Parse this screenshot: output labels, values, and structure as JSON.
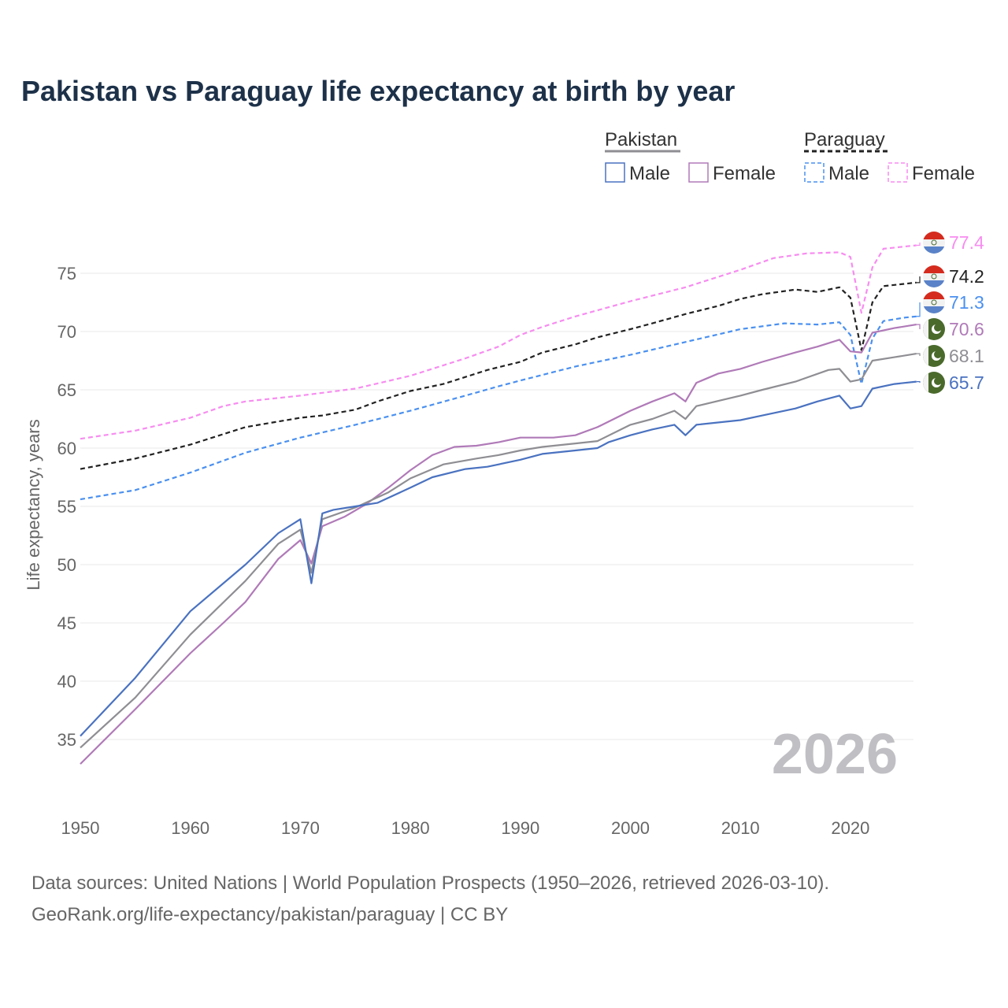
{
  "title": "Pakistan vs Paraguay life expectancy at birth by year",
  "footer": {
    "line1": "Data sources: United Nations | World Population Prospects (1950–2026, retrieved 2026-03-10).",
    "line2": "GeoRank.org/life-expectancy/pakistan/paraguay | CC BY"
  },
  "chart_data": {
    "type": "line",
    "title": "Pakistan vs Paraguay life expectancy at birth by year",
    "xlabel": "",
    "ylabel": "Life expectancy, years",
    "xlim": [
      1950,
      2026
    ],
    "ylim": [
      32,
      80
    ],
    "xticks": [
      1950,
      1960,
      1970,
      1980,
      1990,
      2000,
      2010,
      2020
    ],
    "yticks": [
      35,
      40,
      45,
      50,
      55,
      60,
      65,
      70,
      75
    ],
    "grid": true,
    "year_watermark": "2026",
    "legend": {
      "position": "top-right",
      "groups": [
        {
          "name": "Pakistan",
          "items": [
            "Male",
            "Female"
          ]
        },
        {
          "name": "Paraguay",
          "items": [
            "Male",
            "Female"
          ]
        }
      ]
    },
    "series": [
      {
        "name": "Paraguay",
        "sex": "Female",
        "color": "#f78cf0",
        "dash": true,
        "flag": "paraguay",
        "end_label": "77.4",
        "points": [
          [
            1950,
            60.8
          ],
          [
            1955,
            61.5
          ],
          [
            1960,
            62.6
          ],
          [
            1963,
            63.6
          ],
          [
            1965,
            64.0
          ],
          [
            1970,
            64.5
          ],
          [
            1975,
            65.1
          ],
          [
            1980,
            66.2
          ],
          [
            1985,
            67.7
          ],
          [
            1988,
            68.7
          ],
          [
            1990,
            69.7
          ],
          [
            1992,
            70.4
          ],
          [
            1995,
            71.3
          ],
          [
            2000,
            72.6
          ],
          [
            2005,
            73.8
          ],
          [
            2010,
            75.3
          ],
          [
            2013,
            76.3
          ],
          [
            2016,
            76.7
          ],
          [
            2019,
            76.8
          ],
          [
            2020,
            76.4
          ],
          [
            2021,
            71.6
          ],
          [
            2022,
            75.5
          ],
          [
            2023,
            77.1
          ],
          [
            2026,
            77.4
          ]
        ]
      },
      {
        "name": "Paraguay",
        "sex": "Total",
        "color": "#222222",
        "dash": true,
        "flag": "paraguay",
        "end_label": "74.2",
        "points": [
          [
            1950,
            58.2
          ],
          [
            1955,
            59.1
          ],
          [
            1960,
            60.3
          ],
          [
            1965,
            61.8
          ],
          [
            1970,
            62.6
          ],
          [
            1972,
            62.8
          ],
          [
            1975,
            63.3
          ],
          [
            1977,
            64.0
          ],
          [
            1980,
            64.9
          ],
          [
            1983,
            65.5
          ],
          [
            1985,
            66.1
          ],
          [
            1987,
            66.7
          ],
          [
            1990,
            67.4
          ],
          [
            1992,
            68.2
          ],
          [
            1995,
            68.9
          ],
          [
            1997,
            69.5
          ],
          [
            2000,
            70.2
          ],
          [
            2002,
            70.7
          ],
          [
            2005,
            71.5
          ],
          [
            2008,
            72.2
          ],
          [
            2010,
            72.8
          ],
          [
            2012,
            73.2
          ],
          [
            2015,
            73.6
          ],
          [
            2017,
            73.4
          ],
          [
            2019,
            73.8
          ],
          [
            2020,
            72.9
          ],
          [
            2021,
            68.4
          ],
          [
            2022,
            72.5
          ],
          [
            2023,
            73.9
          ],
          [
            2025,
            74.1
          ],
          [
            2026,
            74.2
          ]
        ]
      },
      {
        "name": "Paraguay",
        "sex": "Male",
        "color": "#4a90f0",
        "dash": true,
        "flag": "paraguay",
        "end_label": "71.3",
        "points": [
          [
            1950,
            55.6
          ],
          [
            1955,
            56.4
          ],
          [
            1960,
            57.9
          ],
          [
            1965,
            59.6
          ],
          [
            1970,
            60.9
          ],
          [
            1975,
            62.0
          ],
          [
            1980,
            63.2
          ],
          [
            1985,
            64.5
          ],
          [
            1988,
            65.3
          ],
          [
            1990,
            65.8
          ],
          [
            1995,
            67.0
          ],
          [
            2000,
            68.0
          ],
          [
            2005,
            69.1
          ],
          [
            2010,
            70.2
          ],
          [
            2014,
            70.7
          ],
          [
            2017,
            70.6
          ],
          [
            2019,
            70.8
          ],
          [
            2020,
            69.7
          ],
          [
            2021,
            65.5
          ],
          [
            2022,
            69.4
          ],
          [
            2023,
            70.9
          ],
          [
            2025,
            71.2
          ],
          [
            2026,
            71.3
          ]
        ]
      },
      {
        "name": "Pakistan",
        "sex": "Female",
        "color": "#b07ab8",
        "dash": false,
        "flag": "pakistan",
        "end_label": "70.6",
        "points": [
          [
            1950,
            32.9
          ],
          [
            1955,
            37.6
          ],
          [
            1960,
            42.4
          ],
          [
            1963,
            45.0
          ],
          [
            1965,
            46.8
          ],
          [
            1968,
            50.5
          ],
          [
            1970,
            52.1
          ],
          [
            1971,
            50.1
          ],
          [
            1972,
            53.3
          ],
          [
            1974,
            54.1
          ],
          [
            1976,
            55.2
          ],
          [
            1978,
            56.6
          ],
          [
            1980,
            58.1
          ],
          [
            1982,
            59.4
          ],
          [
            1984,
            60.1
          ],
          [
            1986,
            60.2
          ],
          [
            1988,
            60.5
          ],
          [
            1990,
            60.9
          ],
          [
            1993,
            60.9
          ],
          [
            1995,
            61.1
          ],
          [
            1997,
            61.8
          ],
          [
            2000,
            63.2
          ],
          [
            2002,
            64.0
          ],
          [
            2004,
            64.7
          ],
          [
            2005,
            64.0
          ],
          [
            2006,
            65.6
          ],
          [
            2008,
            66.4
          ],
          [
            2010,
            66.8
          ],
          [
            2012,
            67.4
          ],
          [
            2015,
            68.2
          ],
          [
            2017,
            68.7
          ],
          [
            2019,
            69.3
          ],
          [
            2020,
            68.3
          ],
          [
            2021,
            68.2
          ],
          [
            2022,
            69.9
          ],
          [
            2024,
            70.3
          ],
          [
            2026,
            70.6
          ]
        ]
      },
      {
        "name": "Pakistan",
        "sex": "Total",
        "color": "#8e8e93",
        "dash": false,
        "flag": "pakistan",
        "end_label": "68.1",
        "points": [
          [
            1950,
            34.3
          ],
          [
            1955,
            38.6
          ],
          [
            1960,
            44.0
          ],
          [
            1965,
            48.6
          ],
          [
            1968,
            51.8
          ],
          [
            1970,
            53.0
          ],
          [
            1971,
            49.3
          ],
          [
            1972,
            53.9
          ],
          [
            1975,
            54.9
          ],
          [
            1978,
            56.2
          ],
          [
            1980,
            57.4
          ],
          [
            1983,
            58.6
          ],
          [
            1986,
            59.1
          ],
          [
            1988,
            59.4
          ],
          [
            1990,
            59.8
          ],
          [
            1992,
            60.1
          ],
          [
            1995,
            60.4
          ],
          [
            1997,
            60.6
          ],
          [
            2000,
            62.0
          ],
          [
            2002,
            62.5
          ],
          [
            2004,
            63.2
          ],
          [
            2005,
            62.5
          ],
          [
            2006,
            63.6
          ],
          [
            2010,
            64.5
          ],
          [
            2012,
            65.0
          ],
          [
            2015,
            65.7
          ],
          [
            2018,
            66.7
          ],
          [
            2019,
            66.8
          ],
          [
            2020,
            65.7
          ],
          [
            2021,
            65.9
          ],
          [
            2022,
            67.5
          ],
          [
            2024,
            67.8
          ],
          [
            2026,
            68.1
          ]
        ]
      },
      {
        "name": "Pakistan",
        "sex": "Male",
        "color": "#4a72c0",
        "dash": false,
        "flag": "pakistan",
        "end_label": "65.7",
        "points": [
          [
            1950,
            35.3
          ],
          [
            1955,
            40.3
          ],
          [
            1960,
            46.0
          ],
          [
            1965,
            50.0
          ],
          [
            1968,
            52.7
          ],
          [
            1970,
            53.9
          ],
          [
            1971,
            48.4
          ],
          [
            1972,
            54.4
          ],
          [
            1973,
            54.7
          ],
          [
            1975,
            55.0
          ],
          [
            1977,
            55.3
          ],
          [
            1980,
            56.6
          ],
          [
            1982,
            57.5
          ],
          [
            1985,
            58.2
          ],
          [
            1987,
            58.4
          ],
          [
            1990,
            59.0
          ],
          [
            1992,
            59.5
          ],
          [
            1995,
            59.8
          ],
          [
            1997,
            60.0
          ],
          [
            1998,
            60.5
          ],
          [
            2000,
            61.1
          ],
          [
            2002,
            61.6
          ],
          [
            2004,
            62.0
          ],
          [
            2005,
            61.1
          ],
          [
            2006,
            62.0
          ],
          [
            2010,
            62.4
          ],
          [
            2012,
            62.8
          ],
          [
            2015,
            63.4
          ],
          [
            2017,
            64.0
          ],
          [
            2019,
            64.5
          ],
          [
            2020,
            63.4
          ],
          [
            2021,
            63.6
          ],
          [
            2022,
            65.1
          ],
          [
            2024,
            65.5
          ],
          [
            2026,
            65.7
          ]
        ]
      }
    ]
  }
}
